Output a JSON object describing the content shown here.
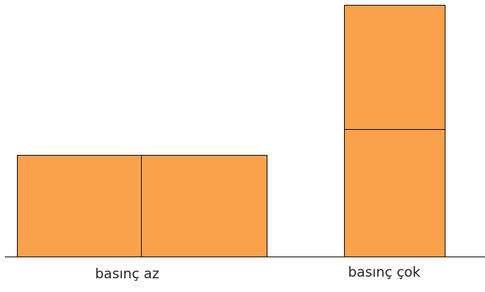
{
  "colors": {
    "block_fill": "#F9A24B",
    "outline": "#1a1a1a",
    "background": "#ffffff"
  },
  "left_stack": {
    "label": "basınç az",
    "arrangement": "side-by-side",
    "block_count": 2
  },
  "right_stack": {
    "label": "basınç çok",
    "arrangement": "stacked",
    "block_count": 2
  }
}
